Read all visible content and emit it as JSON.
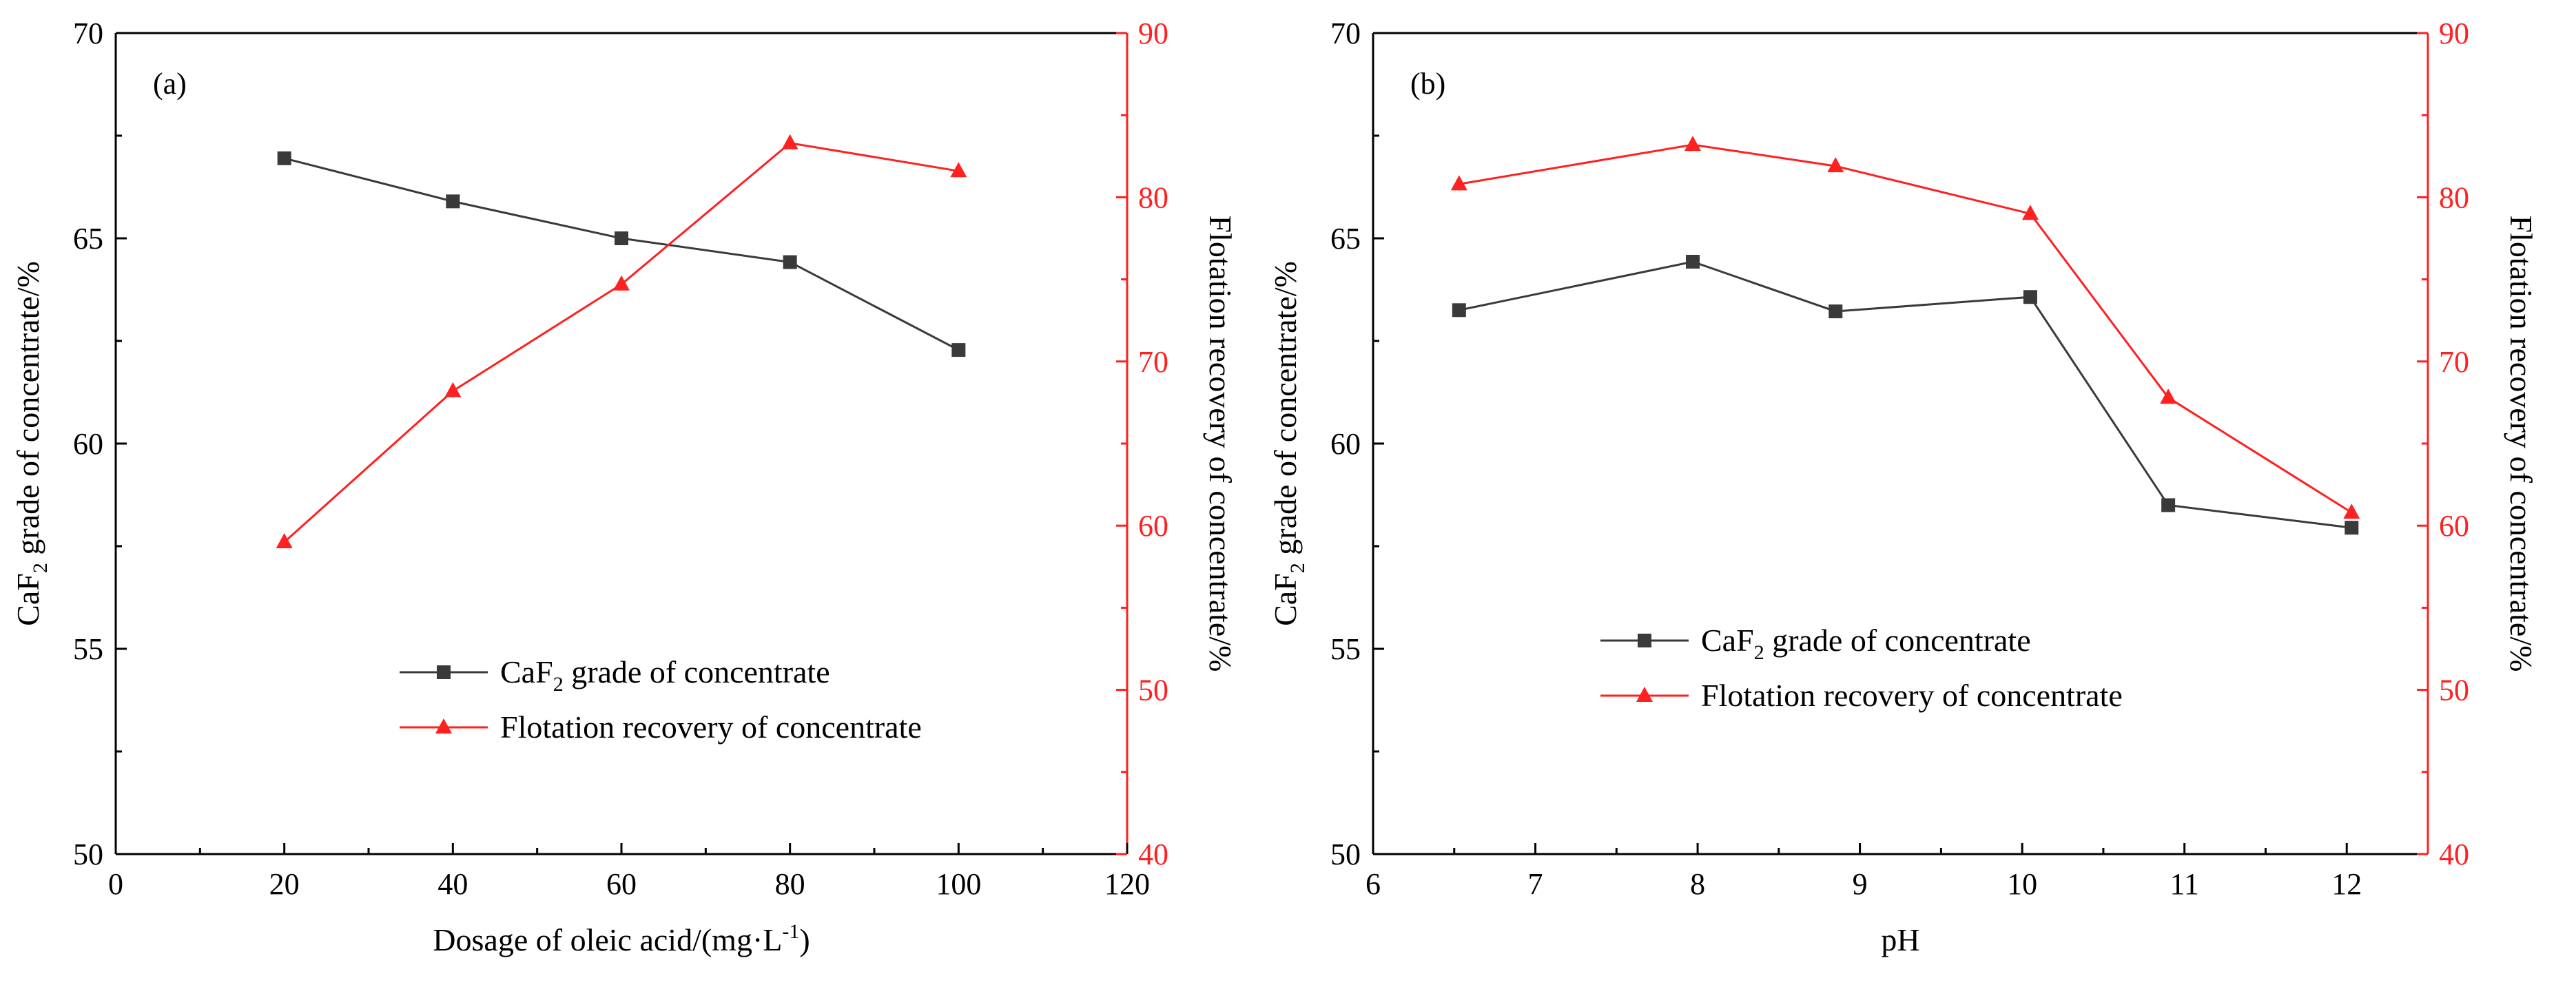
{
  "colors": {
    "grade": "#3a3a3a",
    "recovery": "#ff2020",
    "axis": "#000000",
    "right_axis": "#ff2020"
  },
  "chart_data": [
    {
      "type": "line",
      "panel_label": "(a)",
      "xlabel": "Dosage of oleic acid/(mg·L",
      "xlabel_sup": "-1",
      "xlabel_close": ")",
      "ylabel_left": {
        "pre": "CaF",
        "sub": "2",
        "post": " grade of concentrate/%"
      },
      "ylabel_right": "Flotation recovery of concentrate/%",
      "xlim": [
        0,
        120
      ],
      "xticks": [
        0,
        20,
        40,
        60,
        80,
        100,
        120
      ],
      "ylim_left": [
        50,
        70
      ],
      "yticks_left": [
        50,
        55,
        60,
        65,
        70
      ],
      "ylim_right": [
        40,
        90
      ],
      "yticks_right": [
        40,
        50,
        60,
        70,
        80,
        90
      ],
      "legend_position": "lower-center",
      "series": [
        {
          "key": "grade",
          "axis": "left",
          "marker": "square",
          "legend": {
            "pre": "CaF",
            "sub": "2",
            "post": " grade of concentrate"
          },
          "x": [
            20,
            40,
            60,
            80,
            100
          ],
          "y": [
            66.95,
            65.9,
            65.0,
            64.42,
            62.28
          ]
        },
        {
          "key": "recovery",
          "axis": "right",
          "marker": "triangle",
          "legend": {
            "pre": "Flotation recovery of concentrate",
            "sub": "",
            "post": ""
          },
          "x": [
            20,
            40,
            60,
            80,
            100
          ],
          "y": [
            59.0,
            68.2,
            74.7,
            83.3,
            81.6
          ]
        }
      ]
    },
    {
      "type": "line",
      "panel_label": "(b)",
      "xlabel": "pH",
      "xlabel_sup": "",
      "xlabel_close": "",
      "ylabel_left": {
        "pre": "CaF",
        "sub": "2",
        "post": " grade of concentrate/%"
      },
      "ylabel_right": "Flotation recovery of concentrate/%",
      "xlim": [
        6,
        12.5
      ],
      "xticks": [
        6,
        7,
        8,
        9,
        10,
        11,
        12
      ],
      "ylim_left": [
        50,
        70
      ],
      "yticks_left": [
        50,
        55,
        60,
        65,
        70
      ],
      "ylim_right": [
        40,
        90
      ],
      "yticks_right": [
        40,
        50,
        60,
        70,
        80,
        90
      ],
      "legend_position": "lower-left",
      "series": [
        {
          "key": "grade",
          "axis": "left",
          "marker": "square",
          "legend": {
            "pre": "CaF",
            "sub": "2",
            "post": " grade of concentrate"
          },
          "x": [
            6.53,
            7.97,
            8.85,
            10.05,
            10.9,
            12.03
          ],
          "y": [
            63.25,
            64.43,
            63.22,
            63.57,
            58.5,
            57.95
          ]
        },
        {
          "key": "recovery",
          "axis": "right",
          "marker": "triangle",
          "legend": {
            "pre": "Flotation recovery of concentrate",
            "sub": "",
            "post": ""
          },
          "x": [
            6.53,
            7.97,
            8.85,
            10.05,
            10.9,
            12.03
          ],
          "y": [
            80.8,
            83.2,
            81.9,
            79.0,
            67.8,
            60.8
          ]
        }
      ]
    }
  ]
}
